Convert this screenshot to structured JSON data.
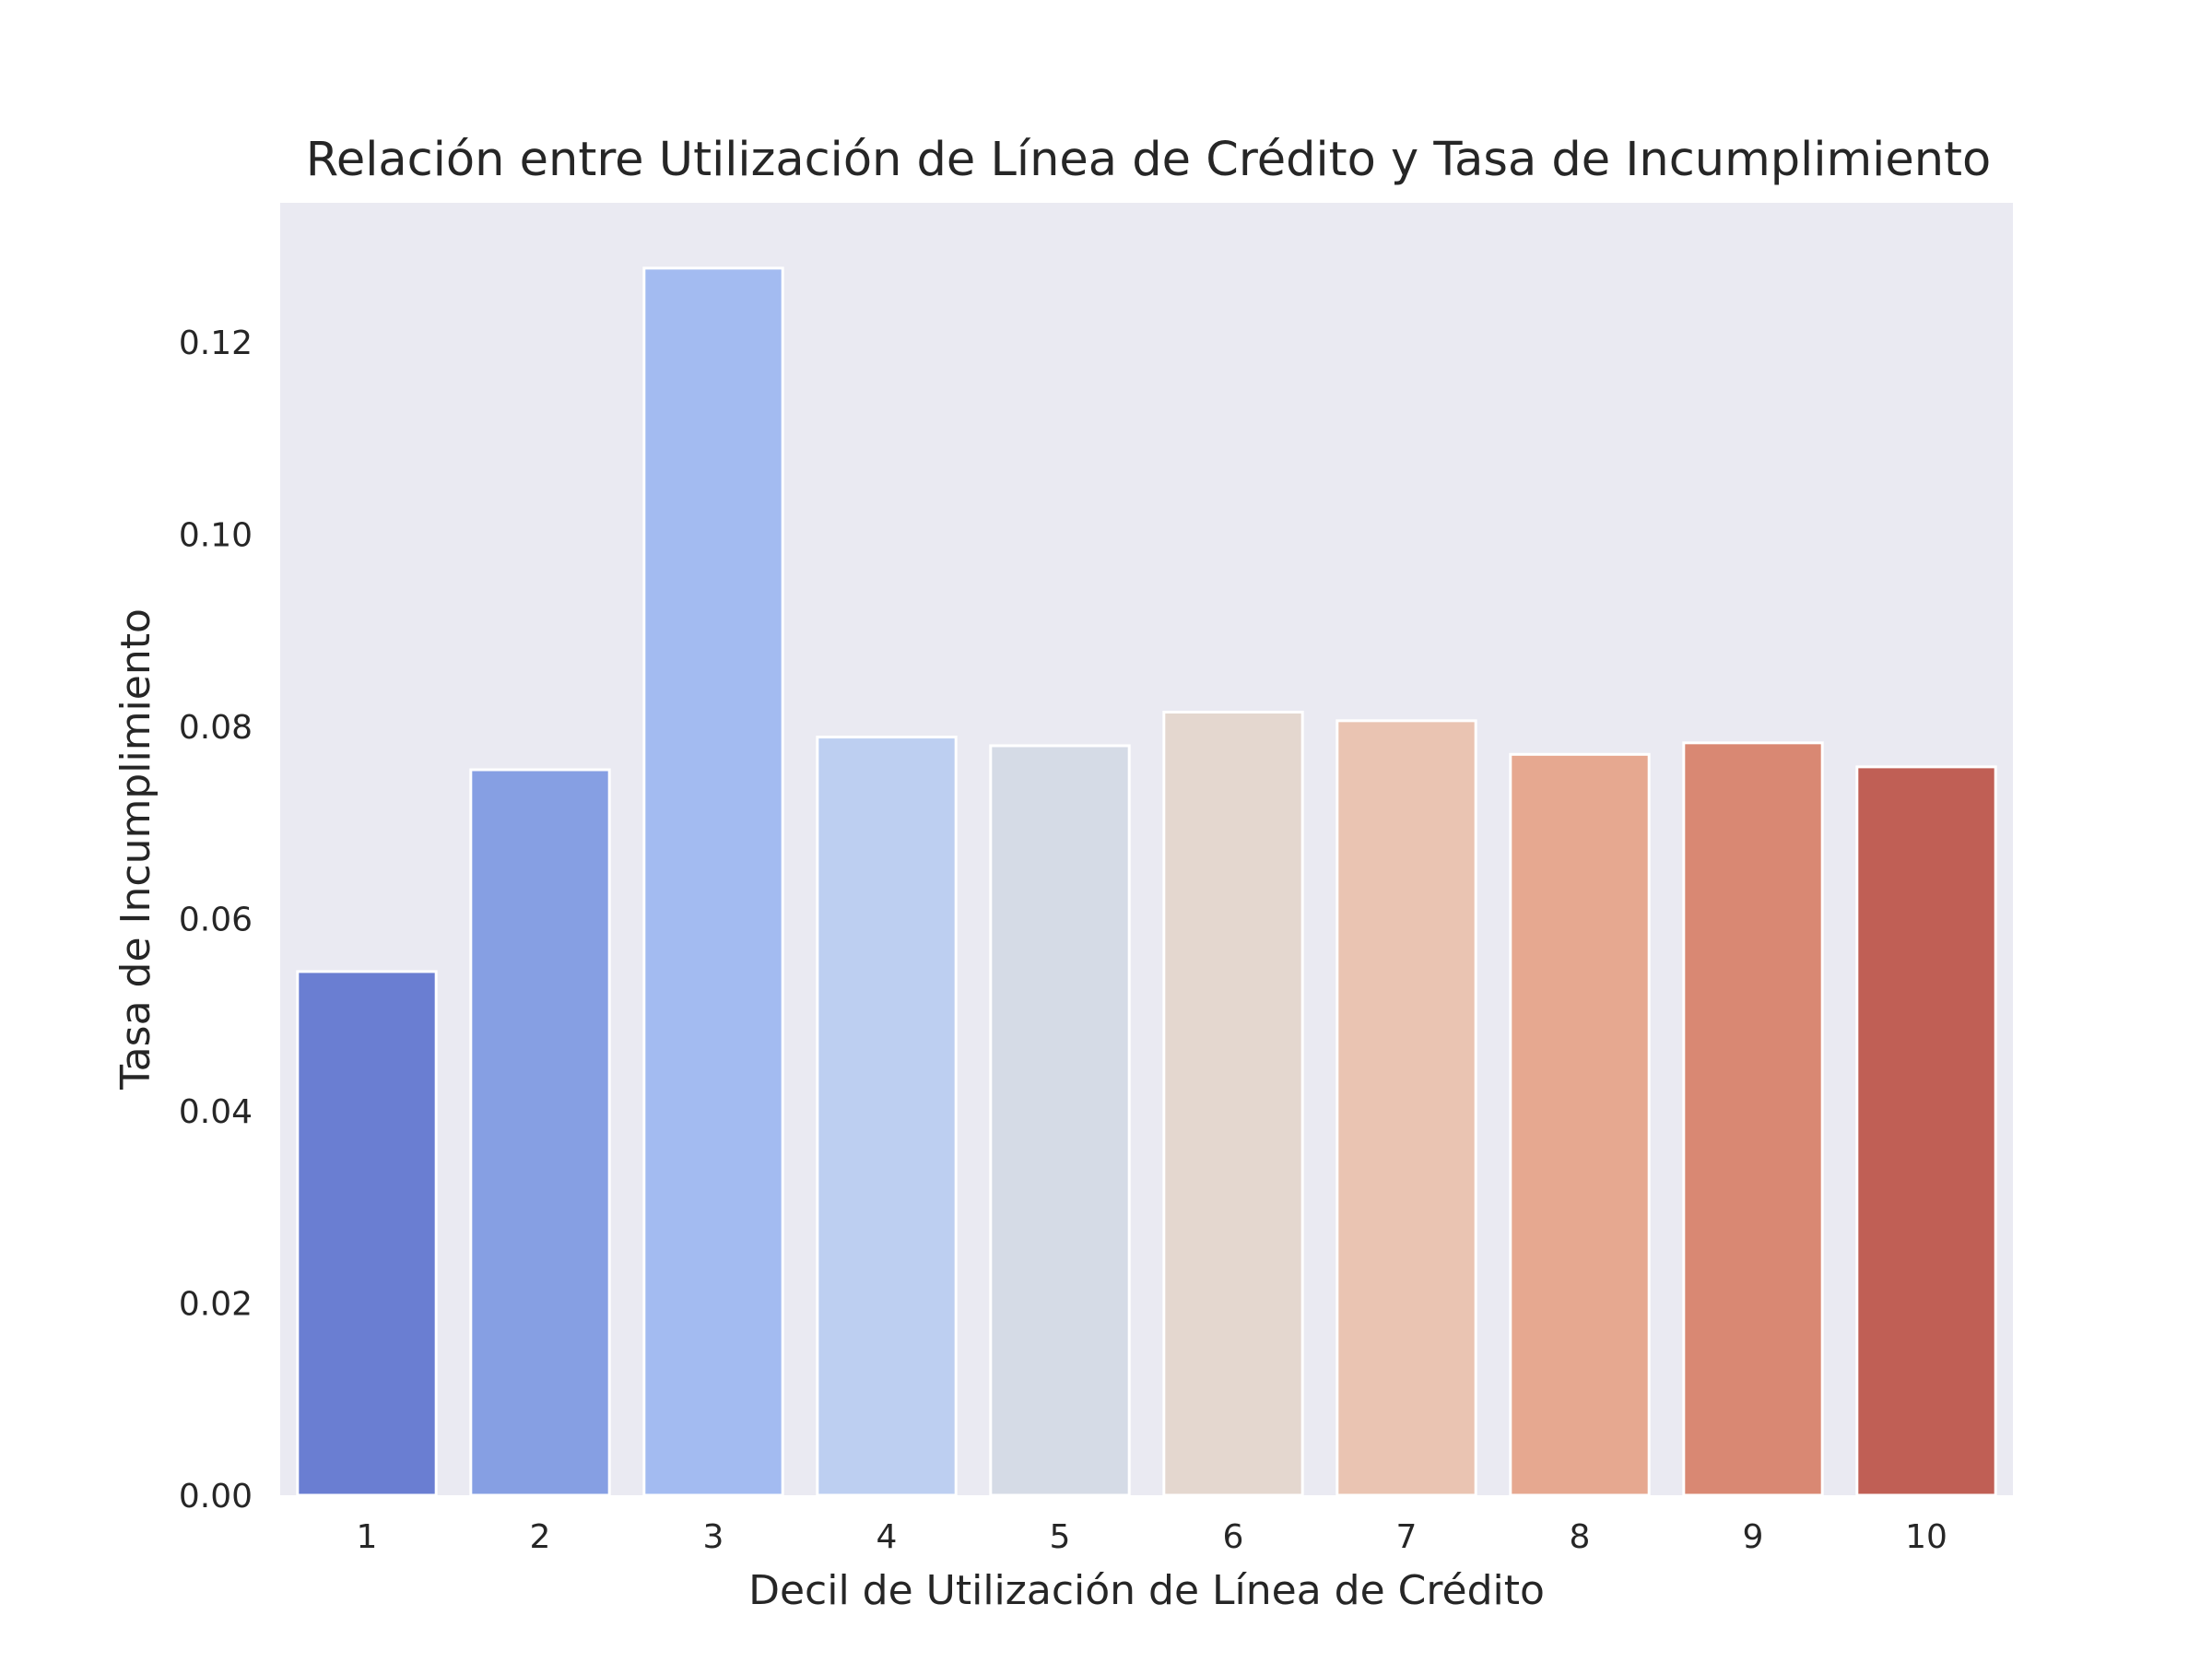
{
  "chart_data": {
    "type": "bar",
    "title": "Relación entre Utilización de Línea de Crédito y Tasa de Incumplimiento",
    "xlabel": "Decil de Utilización de Línea de Crédito",
    "ylabel": "Tasa de Incumplimiento",
    "categories": [
      "1",
      "2",
      "3",
      "4",
      "5",
      "6",
      "7",
      "8",
      "9",
      "10"
    ],
    "values": [
      0.0545,
      0.0755,
      0.1277,
      0.0789,
      0.078,
      0.0815,
      0.0806,
      0.0771,
      0.0783,
      0.0758
    ],
    "colors": [
      "#6a7ed2",
      "#869fe3",
      "#a3bbf1",
      "#bdcff1",
      "#d5dbe6",
      "#e4d7cf",
      "#eac4b2",
      "#e6a890",
      "#d98873",
      "#c05f55"
    ],
    "ylim": [
      0,
      0.1345
    ],
    "yticks": [
      "0.00",
      "0.02",
      "0.04",
      "0.06",
      "0.08",
      "0.10",
      "0.12"
    ],
    "grid": false,
    "background": "#eaeaf2",
    "bar_edge_color": "#ffffff"
  }
}
